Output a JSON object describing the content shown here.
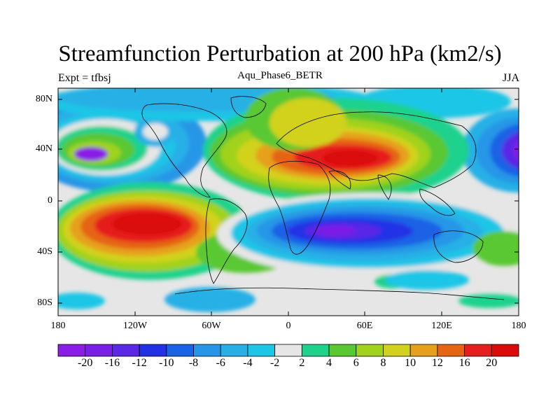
{
  "title": "Streamfunction Perturbation at 200 hPa (km2/s)",
  "subtitle_left": "Expt = tfbsj",
  "subtitle_center": "Aqu_Phase6_BETR",
  "subtitle_right": "JJA",
  "lat_labels": [
    "80N",
    "40N",
    "0",
    "40S",
    "80S"
  ],
  "lon_labels": [
    "180",
    "120W",
    "60W",
    "0",
    "60E",
    "120E",
    "180"
  ],
  "colorbar": {
    "labels": [
      "-20",
      "-16",
      "-12",
      "-10",
      "-8",
      "-6",
      "-4",
      "-2",
      "2",
      "4",
      "6",
      "8",
      "10",
      "12",
      "16",
      "20"
    ],
    "colors": [
      "#8a1ee6",
      "#7a1fe6",
      "#5a28e6",
      "#2230e6",
      "#1a62e6",
      "#2896e6",
      "#28b0e6",
      "#1ec6e6",
      "#e6e6e6",
      "#1ed28c",
      "#5ac832",
      "#a0d21e",
      "#d2d21e",
      "#e6a01e",
      "#e66414",
      "#e61e1e",
      "#dc0a0a"
    ]
  },
  "colors": {
    "land_outline": "#000000",
    "background": "#e6e6e6"
  }
}
